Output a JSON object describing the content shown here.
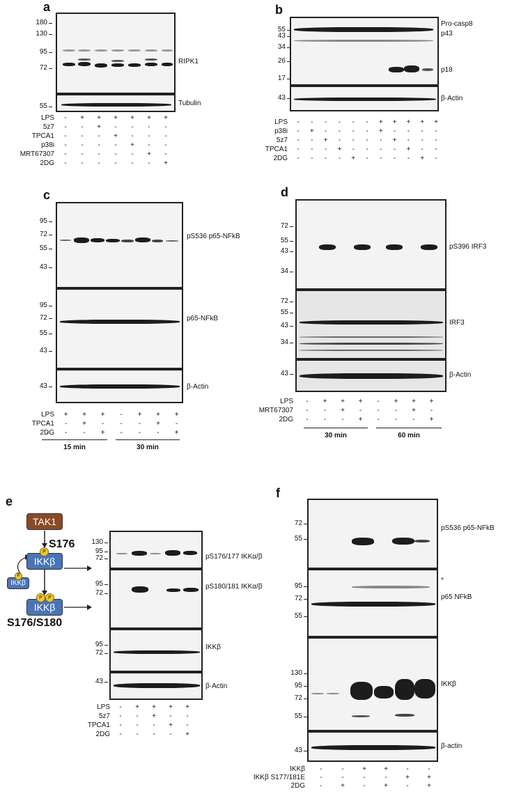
{
  "panels": {
    "a": {
      "letter": "a",
      "markers": [
        "180",
        "130",
        "95",
        "72",
        "55"
      ],
      "bands": [
        "RIPK1",
        "Tubulin"
      ],
      "rows": [
        {
          "label": "LPS",
          "values": [
            "-",
            "+",
            "+",
            "+",
            "+",
            "+",
            "+"
          ]
        },
        {
          "label": "5z7",
          "values": [
            "-",
            "-",
            "+",
            "-",
            "-",
            "-",
            "-"
          ]
        },
        {
          "label": "TPCA1",
          "values": [
            "-",
            "-",
            "-",
            "+",
            "-",
            "-",
            "-"
          ]
        },
        {
          "label": "p38i",
          "values": [
            "-",
            "-",
            "-",
            "-",
            "+",
            "-",
            "-"
          ]
        },
        {
          "label": "MRT67307",
          "values": [
            "-",
            "-",
            "-",
            "-",
            "-",
            "+",
            "-"
          ]
        },
        {
          "label": "2DG",
          "values": [
            "-",
            "-",
            "-",
            "-",
            "-",
            "-",
            "+"
          ]
        }
      ]
    },
    "b": {
      "letter": "b",
      "markers": [
        "55",
        "43",
        "34",
        "26",
        "17",
        "43"
      ],
      "bands": [
        "Pro-casp8",
        "p43",
        "p18",
        "β-Actin"
      ],
      "rows": [
        {
          "label": "LPS",
          "values": [
            "-",
            "-",
            "-",
            "-",
            "-",
            "-",
            "+",
            "+",
            "+",
            "+",
            "+"
          ]
        },
        {
          "label": "p38i",
          "values": [
            "-",
            "+",
            "-",
            "-",
            "-",
            "-",
            "+",
            "-",
            "-",
            "-",
            "-"
          ]
        },
        {
          "label": "5z7",
          "values": [
            "-",
            "-",
            "+",
            "-",
            "-",
            "-",
            "-",
            "+",
            "-",
            "-",
            "-"
          ]
        },
        {
          "label": "TPCA1",
          "values": [
            "-",
            "-",
            "-",
            "+",
            "-",
            "-",
            "-",
            "-",
            "+",
            "-",
            "-"
          ]
        },
        {
          "label": "2DG",
          "values": [
            "-",
            "-",
            "-",
            "-",
            "+",
            "-",
            "-",
            "-",
            "-",
            "+",
            "-"
          ]
        }
      ]
    },
    "c": {
      "letter": "c",
      "markers": [
        "95",
        "72",
        "55",
        "43",
        "95",
        "72",
        "55",
        "43",
        "43"
      ],
      "bands": [
        "pS536 p65-NFkB",
        "p65-NFkB",
        "β-Actin"
      ],
      "rows": [
        {
          "label": "LPS",
          "values": [
            "-",
            "+",
            "+",
            "+",
            "-",
            "+",
            "+",
            "+"
          ]
        },
        {
          "label": "TPCA1",
          "values": [
            "-",
            "-",
            "+",
            "-",
            "-",
            "-",
            "+",
            "-"
          ]
        },
        {
          "label": "2DG",
          "values": [
            "-",
            "-",
            "-",
            "+",
            "-",
            "-",
            "-",
            "+"
          ]
        }
      ],
      "times": [
        "15 min",
        "30 min"
      ]
    },
    "d": {
      "letter": "d",
      "markers": [
        "72",
        "55",
        "43",
        "34",
        "72",
        "55",
        "43",
        "34",
        "43"
      ],
      "bands": [
        "pS396 IRF3",
        "IRF3",
        "β-Actin"
      ],
      "rows": [
        {
          "label": "LPS",
          "values": [
            "-",
            "+",
            "+",
            "+",
            "-",
            "+",
            "+",
            "+"
          ]
        },
        {
          "label": "MRT67307",
          "values": [
            "-",
            "-",
            "+",
            "-",
            "-",
            "-",
            "+",
            "-"
          ]
        },
        {
          "label": "2DG",
          "values": [
            "-",
            "-",
            "-",
            "+",
            "-",
            "-",
            "-",
            "+"
          ]
        }
      ],
      "times": [
        "30 min",
        "60 min"
      ]
    },
    "e": {
      "letter": "e",
      "diagram": {
        "tak1": "TAK1",
        "ikk": "IKKβ",
        "ikk_small": "IKKβ",
        "p": "P",
        "s176": "S176",
        "s176_180": "S176/S180"
      },
      "markers": [
        "130",
        "95",
        "72",
        "95",
        "72",
        "95",
        "72",
        "43"
      ],
      "bands": [
        "pS176/177 IKKα/β",
        "pS180/181 IKKα/β",
        "IKKβ",
        "β-Actin"
      ],
      "rows": [
        {
          "label": "LPS",
          "values": [
            "-",
            "+",
            "+",
            "+",
            "+"
          ]
        },
        {
          "label": "5z7",
          "values": [
            "-",
            "-",
            "+",
            "-",
            "-"
          ]
        },
        {
          "label": "TPCA1",
          "values": [
            "-",
            "-",
            "-",
            "+",
            "-"
          ]
        },
        {
          "label": "2DG",
          "values": [
            "-",
            "-",
            "-",
            "-",
            "+"
          ]
        }
      ]
    },
    "f": {
      "letter": "f",
      "markers": [
        "72",
        "55",
        "95",
        "72",
        "55",
        "130",
        "95",
        "72",
        "55",
        "43"
      ],
      "bands": [
        "pS536 p65-NFkB",
        "p65 NFkB",
        "IKKβ",
        "β-actin"
      ],
      "asterisk": "*",
      "rows": [
        {
          "label": "IKKβ",
          "values": [
            "-",
            "-",
            "+",
            "+",
            "-",
            "-"
          ]
        },
        {
          "label": "IKKβ S177/181E",
          "values": [
            "-",
            "-",
            "-",
            "-",
            "+",
            "+"
          ]
        },
        {
          "label": "2DG",
          "values": [
            "-",
            "+",
            "-",
            "+",
            "-",
            "+"
          ]
        }
      ]
    }
  }
}
